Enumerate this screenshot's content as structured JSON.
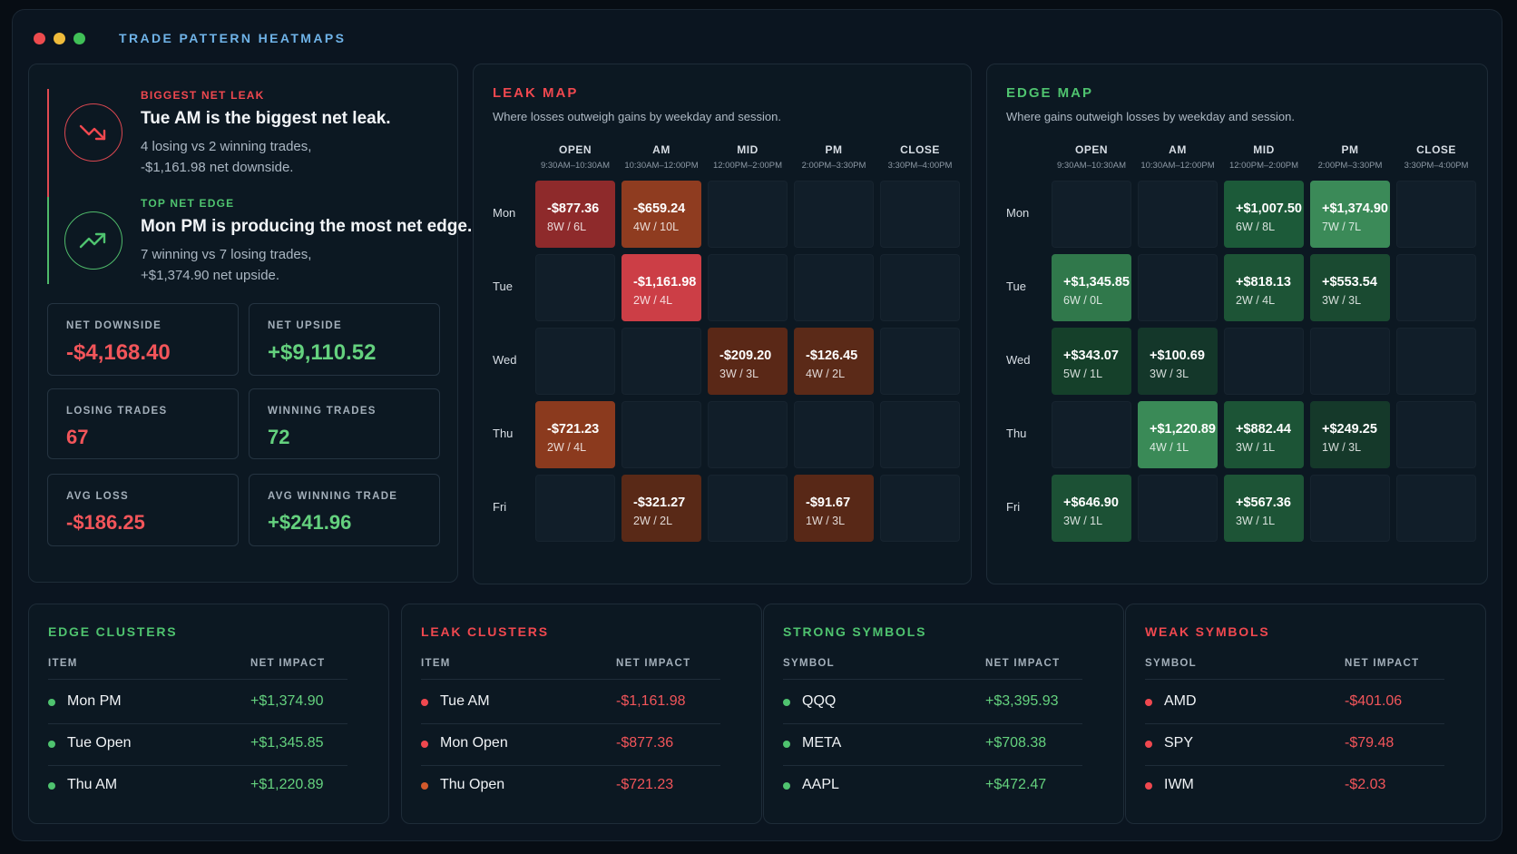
{
  "app_title": "TRADE PATTERN HEATMAPS",
  "colors": {
    "red": "#f0484f",
    "green": "#4fc36f",
    "loss_text": "#f2555a",
    "gain_text": "#64d17e"
  },
  "summary": {
    "leak": {
      "kicker": "BIGGEST NET LEAK",
      "headline": "Tue AM is the biggest net leak.",
      "detail1": "4 losing vs 2 winning trades,",
      "detail2": "-$1,161.98 net downside.",
      "icon": "trend-down-icon"
    },
    "edge": {
      "kicker": "TOP NET EDGE",
      "headline": "Mon PM is producing the most net edge.",
      "detail1": "7 winning vs 7 losing trades,",
      "detail2": "+$1,374.90 net upside.",
      "icon": "trend-up-icon"
    },
    "stats": [
      {
        "label": "NET DOWNSIDE",
        "value": "-$4,168.40",
        "tone": "loss"
      },
      {
        "label": "NET UPSIDE",
        "value": "+$9,110.52",
        "tone": "gain"
      },
      {
        "label": "LOSING TRADES",
        "value": "67",
        "tone": "loss"
      },
      {
        "label": "WINNING TRADES",
        "value": "72",
        "tone": "gain"
      },
      {
        "label": "AVG LOSS",
        "value": "-$186.25",
        "tone": "loss"
      },
      {
        "label": "AVG WINNING TRADE",
        "value": "+$241.96",
        "tone": "gain"
      }
    ]
  },
  "sessions": [
    {
      "name": "OPEN",
      "time": "9:30AM–10:30AM"
    },
    {
      "name": "AM",
      "time": "10:30AM–12:00PM"
    },
    {
      "name": "MID",
      "time": "12:00PM–2:00PM"
    },
    {
      "name": "PM",
      "time": "2:00PM–3:30PM"
    },
    {
      "name": "CLOSE",
      "time": "3:30PM–4:00PM"
    }
  ],
  "days": [
    "Mon",
    "Tue",
    "Wed",
    "Thu",
    "Fri"
  ],
  "leak_map": {
    "title": "LEAK MAP",
    "subtitle": "Where losses outweigh gains by weekday and session.",
    "cells": [
      [
        {
          "amt": "-$877.36",
          "wl": "8W / 6L",
          "color": "#8e2a2b"
        },
        {
          "amt": "-$659.24",
          "wl": "4W / 10L",
          "color": "#8f3c20"
        },
        null,
        null,
        null
      ],
      [
        null,
        {
          "amt": "-$1,161.98",
          "wl": "2W / 4L",
          "color": "#cc3e46"
        },
        null,
        null,
        null
      ],
      [
        null,
        null,
        {
          "amt": "-$209.20",
          "wl": "3W / 3L",
          "color": "#5a2817"
        },
        {
          "amt": "-$126.45",
          "wl": "4W / 2L",
          "color": "#5b2a18"
        },
        null
      ],
      [
        {
          "amt": "-$721.23",
          "wl": "2W / 4L",
          "color": "#8b3a1e"
        },
        null,
        null,
        null,
        null
      ],
      [
        null,
        {
          "amt": "-$321.27",
          "wl": "2W / 2L",
          "color": "#592917"
        },
        null,
        {
          "amt": "-$91.67",
          "wl": "1W / 3L",
          "color": "#582817"
        },
        null
      ]
    ]
  },
  "edge_map": {
    "title": "EDGE MAP",
    "subtitle": "Where gains outweigh losses by weekday and session.",
    "cells": [
      [
        null,
        null,
        {
          "amt": "+$1,007.50",
          "wl": "6W / 8L",
          "color": "#1c5a39"
        },
        {
          "amt": "+$1,374.90",
          "wl": "7W / 7L",
          "color": "#3b8a58"
        },
        null
      ],
      [
        {
          "amt": "+$1,345.85",
          "wl": "6W / 0L",
          "color": "#30784b"
        },
        null,
        {
          "amt": "+$818.13",
          "wl": "2W / 4L",
          "color": "#1d5436"
        },
        {
          "amt": "+$553.54",
          "wl": "3W / 3L",
          "color": "#1a4a31"
        },
        null
      ],
      [
        {
          "amt": "+$343.07",
          "wl": "5W / 1L",
          "color": "#15402a"
        },
        {
          "amt": "+$100.69",
          "wl": "3W / 3L",
          "color": "#14372a"
        },
        null,
        null,
        null
      ],
      [
        null,
        {
          "amt": "+$1,220.89",
          "wl": "4W / 1L",
          "color": "#3a8a57"
        },
        {
          "amt": "+$882.44",
          "wl": "3W / 1L",
          "color": "#1c5436"
        },
        {
          "amt": "+$249.25",
          "wl": "1W / 3L",
          "color": "#15392a"
        },
        null
      ],
      [
        {
          "amt": "+$646.90",
          "wl": "3W / 1L",
          "color": "#1c5135"
        },
        null,
        {
          "amt": "+$567.36",
          "wl": "3W / 1L",
          "color": "#1d5436"
        },
        null,
        null
      ]
    ]
  },
  "tables": [
    {
      "title": "EDGE CLUSTERS",
      "tone": "gain",
      "col1": "ITEM",
      "col2": "NET IMPACT",
      "rows": [
        {
          "name": "Mon PM",
          "impact": "+$1,374.90",
          "bullet": "#4fc36f"
        },
        {
          "name": "Tue Open",
          "impact": "+$1,345.85",
          "bullet": "#4fc36f"
        },
        {
          "name": "Thu AM",
          "impact": "+$1,220.89",
          "bullet": "#4fc36f"
        }
      ]
    },
    {
      "title": "LEAK CLUSTERS",
      "tone": "loss",
      "col1": "ITEM",
      "col2": "NET IMPACT",
      "rows": [
        {
          "name": "Tue AM",
          "impact": "-$1,161.98",
          "bullet": "#f0484f"
        },
        {
          "name": "Mon Open",
          "impact": "-$877.36",
          "bullet": "#f0484f"
        },
        {
          "name": "Thu Open",
          "impact": "-$721.23",
          "bullet": "#d2592c"
        }
      ]
    },
    {
      "title": "STRONG SYMBOLS",
      "tone": "gain",
      "col1": "SYMBOL",
      "col2": "NET IMPACT",
      "rows": [
        {
          "name": "QQQ",
          "impact": "+$3,395.93",
          "bullet": "#4fc36f"
        },
        {
          "name": "META",
          "impact": "+$708.38",
          "bullet": "#4fc36f"
        },
        {
          "name": "AAPL",
          "impact": "+$472.47",
          "bullet": "#4fc36f"
        }
      ]
    },
    {
      "title": "WEAK SYMBOLS",
      "tone": "loss",
      "col1": "SYMBOL",
      "col2": "NET IMPACT",
      "rows": [
        {
          "name": "AMD",
          "impact": "-$401.06",
          "bullet": "#f0484f"
        },
        {
          "name": "SPY",
          "impact": "-$79.48",
          "bullet": "#f0484f"
        },
        {
          "name": "IWM",
          "impact": "-$2.03",
          "bullet": "#f0484f"
        }
      ]
    }
  ]
}
